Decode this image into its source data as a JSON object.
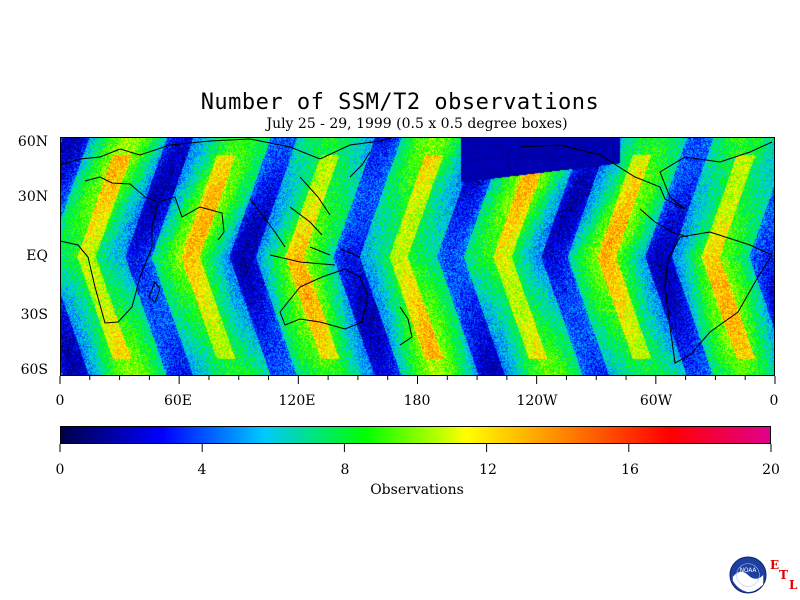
{
  "title": "Number of SSM/T2 observations",
  "subtitle": "July 25 - 29, 1999 (0.5 x 0.5 degree boxes)",
  "lat_labels": [
    "60N",
    "30N",
    "EQ",
    "30S",
    "60S"
  ],
  "lon_labels": [
    "0",
    "60E",
    "120E",
    "180",
    "120W",
    "60W",
    "0"
  ],
  "colorbar": {
    "label": "Observations",
    "ticks": [
      "0",
      "4",
      "8",
      "12",
      "16",
      "20"
    ],
    "range": [
      0,
      20
    ],
    "colors": [
      "#00004a",
      "#0000ff",
      "#00c8ff",
      "#00ff00",
      "#ffff00",
      "#ff8000",
      "#ff0000",
      "#e0008a"
    ]
  },
  "logo": {
    "text": "NOAA",
    "etl": [
      "E",
      "T",
      "L"
    ]
  },
  "chart_data": {
    "type": "heatmap",
    "title": "Number of SSM/T2 observations",
    "subtitle": "July 25 - 29, 1999 (0.5 x 0.5 degree boxes)",
    "x_range": [
      "0",
      "0"
    ],
    "y_range": [
      "60S",
      "60N"
    ],
    "value_range": [
      0,
      20
    ],
    "value_label": "Observations",
    "grid": false
  }
}
